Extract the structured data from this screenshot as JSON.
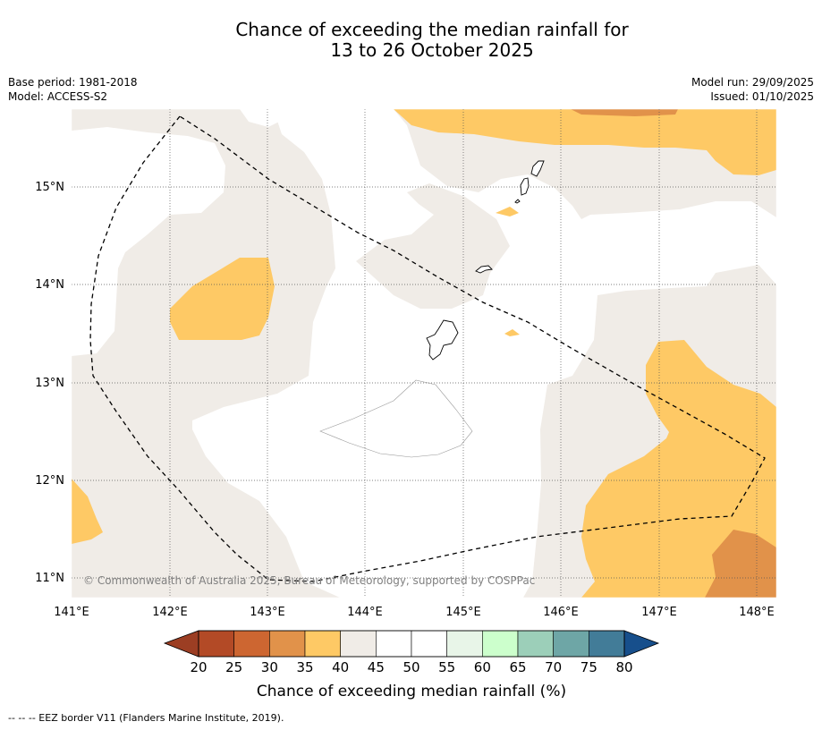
{
  "title_line1": "Chance of exceeding the median rainfall for",
  "title_line2": "13 to 26 October 2025",
  "base_period": "Base period: 1981-2018",
  "model": "Model: ACCESS-S2",
  "model_run": "Model run: 29/09/2025",
  "issued": "Issued: 01/10/2025",
  "copyright": "© Commonwealth of Australia 2025, Bureau of Meteorology, supported by COSPPac",
  "colorbar_title": "Chance of exceeding median rainfall (%)",
  "footnote": "--  --  -- EEZ border V11 (Flanders Marine Institute, 2019).",
  "lon_labels": [
    "141°E",
    "142°E",
    "143°E",
    "144°E",
    "145°E",
    "146°E",
    "147°E",
    "148°E"
  ],
  "lat_labels": [
    "15°N",
    "14°N",
    "13°N",
    "12°N",
    "11°N"
  ],
  "colorbar": {
    "ticks": [
      20,
      25,
      30,
      35,
      40,
      45,
      50,
      55,
      60,
      65,
      70,
      75,
      80
    ],
    "colors": [
      "#b34a26",
      "#cd6631",
      "#e1924a",
      "#fec965",
      "#f0ece7",
      "#ffffff",
      "#ffffff",
      "#e8f5e8",
      "#ccffcc",
      "#9ccfb9",
      "#6ea6a6",
      "#427c98"
    ],
    "under_color": "#9c3e23",
    "over_color": "#174f8c"
  },
  "colors": {
    "near_median": "#f0ece7",
    "drier_35_40": "#fec965",
    "drier_30_35": "#e1924a"
  }
}
